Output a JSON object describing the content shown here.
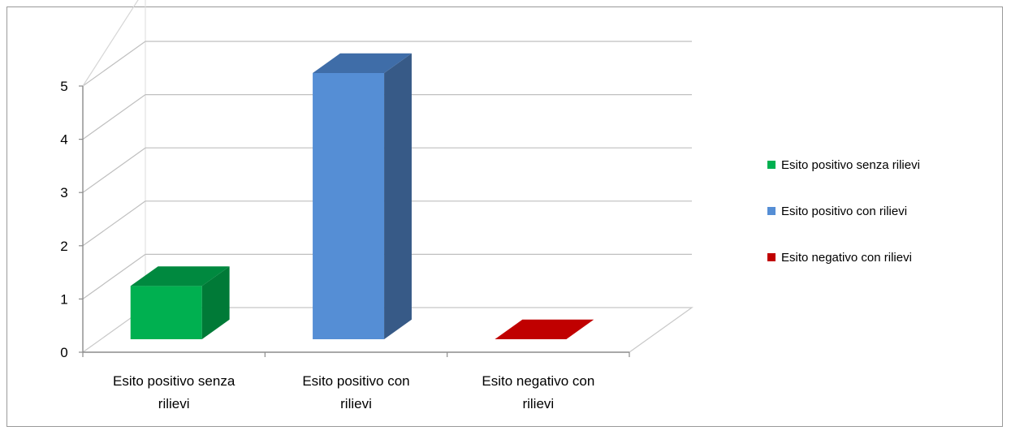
{
  "chart_data": {
    "type": "bar",
    "categories": [
      "Esito positivo senza rilievi",
      "Esito positivo con rilievi",
      "Esito negativo con rilievi"
    ],
    "category_label_lines": [
      [
        "Esito positivo senza",
        "rilievi"
      ],
      [
        "Esito positivo con",
        "rilievi"
      ],
      [
        "Esito negativo con",
        "rilievi"
      ]
    ],
    "values": [
      1,
      5,
      0
    ],
    "ylim": [
      0,
      5
    ],
    "yticks": [
      0,
      1,
      2,
      3,
      4,
      5
    ],
    "grid": true,
    "legend_position": "right",
    "legend": [
      {
        "label": "Esito positivo senza rilievi",
        "color": "#00B050"
      },
      {
        "label": "Esito positivo con rilievi",
        "color": "#558ED5"
      },
      {
        "label": "Esito negativo con rilievi",
        "color": "#C00000"
      }
    ],
    "bar_colors": [
      {
        "front": "#00B050",
        "side": "#007A37",
        "top": "#00893F"
      },
      {
        "front": "#558ED5",
        "side": "#375A87",
        "top": "#3F6DA8"
      },
      {
        "front": "#C00000",
        "side": "#8A0000",
        "top": "#C00000"
      }
    ]
  }
}
